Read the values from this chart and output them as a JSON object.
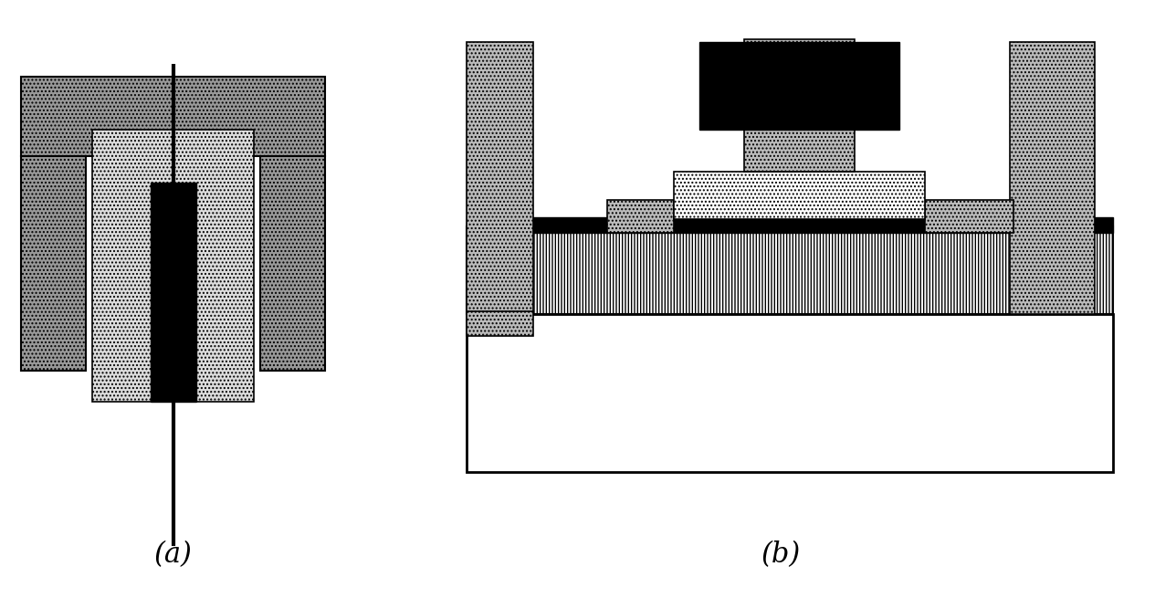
{
  "fig_width": 12.65,
  "fig_height": 6.55,
  "bg_color": "#ffffff",
  "label_a": "(a)",
  "label_b": "(b)",
  "label_fontsize": 22
}
